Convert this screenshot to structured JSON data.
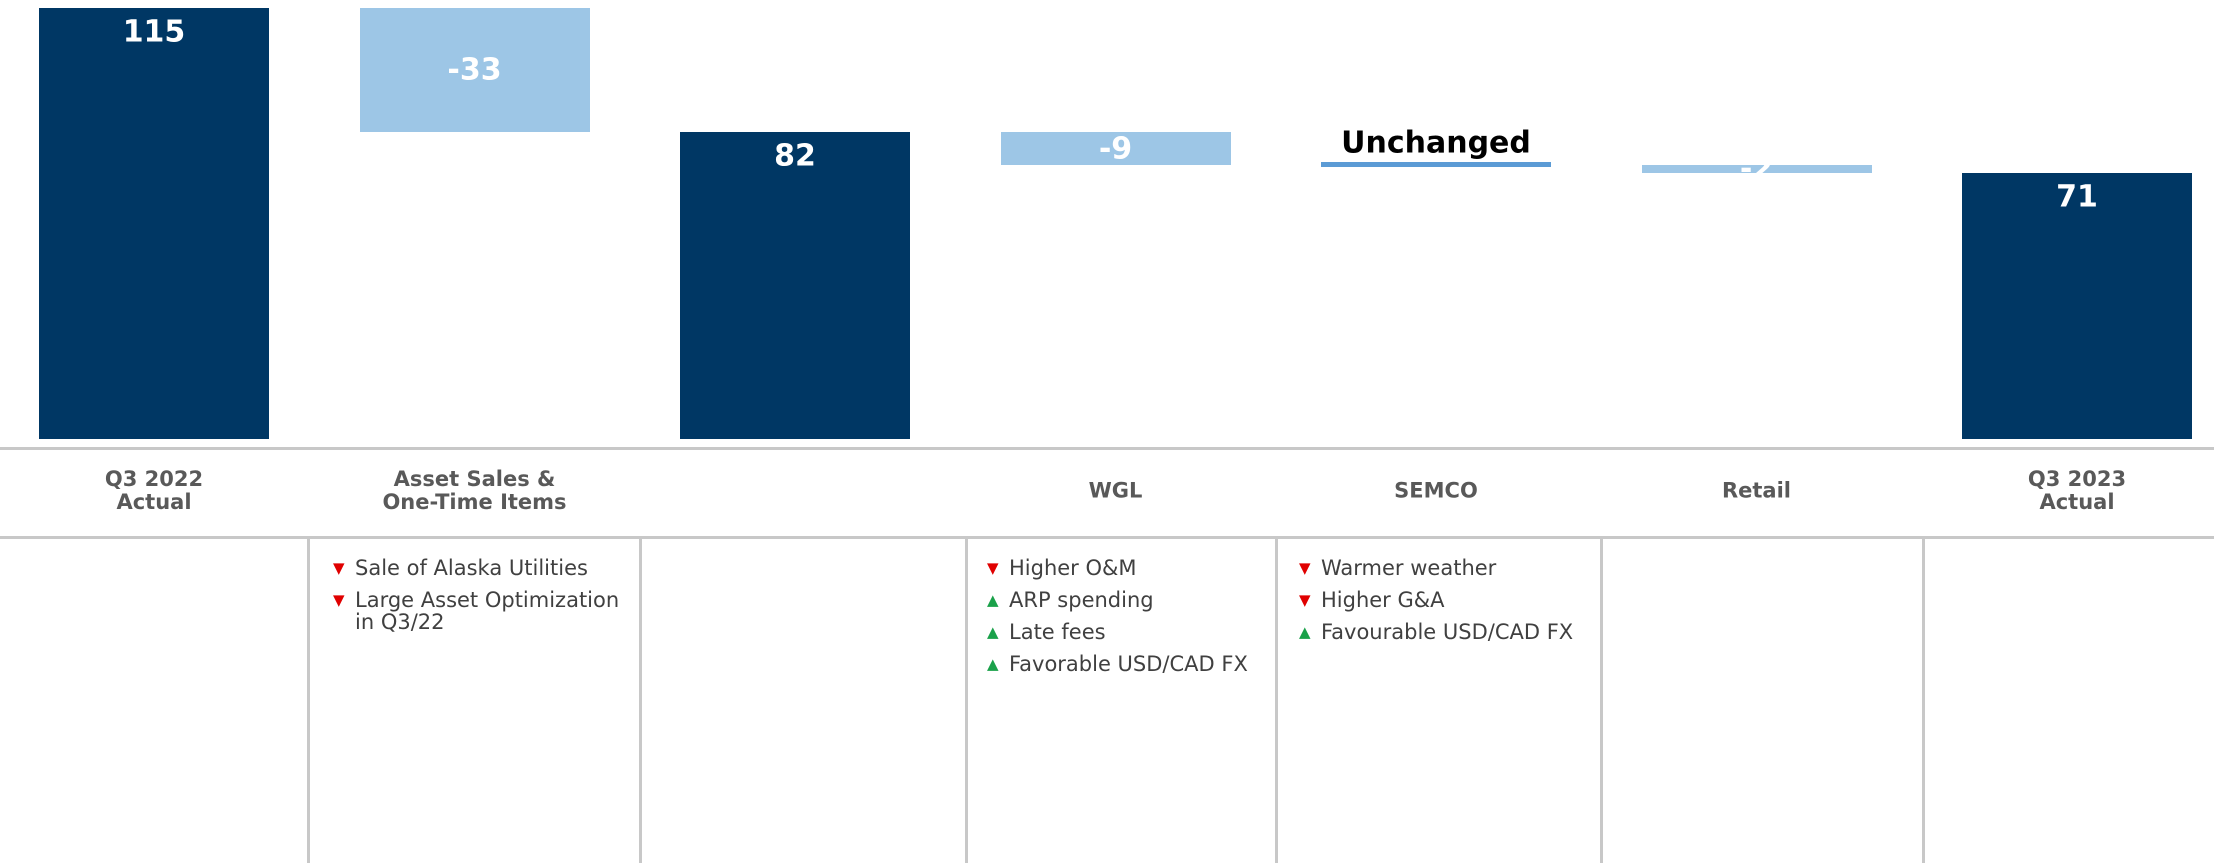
{
  "chart_data": {
    "type": "waterfall",
    "categories": [
      "Q3 2022\nActual",
      "Asset Sales &\nOne-Time Items",
      null,
      "WGL",
      "SEMCO",
      "Retail",
      "Q3 2023\nActual"
    ],
    "values": [
      115,
      -33,
      82,
      -9,
      0,
      -2,
      71
    ],
    "value_labels": [
      "115",
      "-33",
      "82",
      "-9",
      "Unchanged",
      "-2",
      "71"
    ],
    "measure": [
      "absolute",
      "relative",
      "absolute",
      "relative",
      "relative",
      "relative",
      "absolute"
    ],
    "colors": [
      "#003764",
      "#9dc6e6",
      "#003764",
      "#9dc6e6",
      "#5b9bd5",
      "#9dc6e6",
      "#003764"
    ],
    "ylim": [
      0,
      115
    ],
    "notes": [
      [],
      [
        {
          "marker": "▼",
          "text": "Sale of Alaska Utilities"
        },
        {
          "marker": "▼",
          "text": "Large Asset Optimization\nin Q3/22"
        }
      ],
      [],
      [
        {
          "marker": "▼",
          "text": "Higher O&M"
        },
        {
          "marker": "▲",
          "text": "ARP spending"
        },
        {
          "marker": "▲",
          "text": "Late fees"
        },
        {
          "marker": "▲",
          "text": "Favorable USD/CAD FX"
        }
      ],
      [
        {
          "marker": "▼",
          "text": "Warmer weather"
        },
        {
          "marker": "▼",
          "text": "Higher G&A"
        },
        {
          "marker": "▲",
          "text": "Favourable USD/CAD FX"
        }
      ],
      [],
      []
    ]
  }
}
